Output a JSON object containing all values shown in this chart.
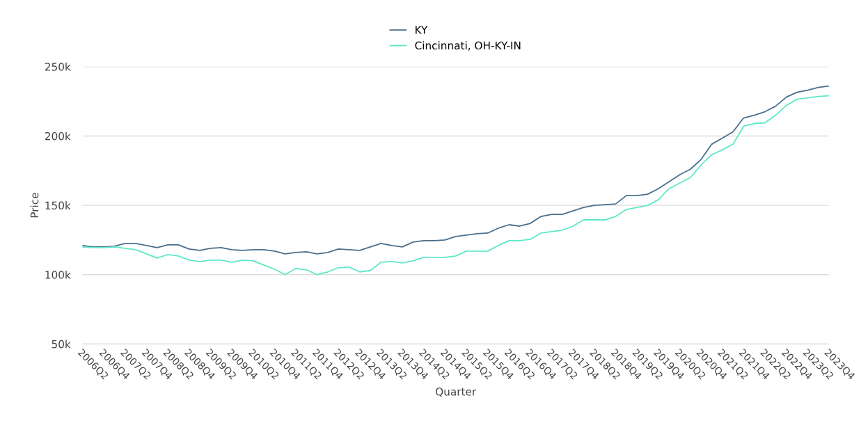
{
  "chart_data": {
    "type": "line",
    "xlabel": "Quarter",
    "ylabel": "Price",
    "categories": [
      "2006Q2",
      null,
      "2006Q4",
      null,
      "2007Q2",
      null,
      "2007Q4",
      null,
      "2008Q2",
      null,
      "2008Q4",
      null,
      "2009Q2",
      null,
      "2009Q4",
      null,
      "2010Q2",
      null,
      "2010Q4",
      null,
      "2011Q2",
      null,
      "2011Q4",
      null,
      "2012Q2",
      null,
      "2012Q4",
      null,
      "2013Q2",
      null,
      "2013Q4",
      null,
      "2014Q2",
      null,
      "2014Q4",
      null,
      "2015Q2",
      null,
      "2015Q4",
      null,
      "2016Q2",
      null,
      "2016Q4",
      null,
      "2017Q2",
      null,
      "2017Q4",
      null,
      "2018Q2",
      null,
      "2018Q4",
      null,
      "2019Q2",
      null,
      "2019Q4",
      null,
      "2020Q2",
      null,
      "2020Q4",
      null,
      "2021Q2",
      null,
      "2021Q4",
      null,
      "2022Q2",
      null,
      "2022Q4",
      null,
      "2023Q2",
      null,
      "2023Q4"
    ],
    "series": [
      {
        "name": "KY",
        "color": "#4a6f8c",
        "values": [
          121000,
          120000,
          120000,
          120500,
          122500,
          122500,
          121000,
          119500,
          121500,
          121500,
          118500,
          117500,
          119000,
          119500,
          118000,
          117500,
          118000,
          118000,
          117000,
          115000,
          116000,
          116500,
          115000,
          116000,
          118500,
          118000,
          117500,
          120000,
          122500,
          121000,
          120000,
          123500,
          124500,
          124500,
          125000,
          127500,
          128500,
          129500,
          130000,
          133500,
          136000,
          135000,
          137000,
          142000,
          143500,
          143500,
          146000,
          148500,
          150000,
          150500,
          151000,
          157000,
          157000,
          158000,
          162000,
          167000,
          172000,
          176000,
          183000,
          194000,
          198500,
          203000,
          213000,
          215000,
          217500,
          221500,
          228000,
          231500,
          233000,
          235000,
          236000
        ]
      },
      {
        "name": "Cincinnati, OH-KY-IN",
        "color": "#5ee8c8",
        "values": [
          120000,
          119500,
          119500,
          120000,
          119000,
          118000,
          115000,
          112000,
          114500,
          113500,
          110500,
          109500,
          110500,
          110500,
          109000,
          110500,
          110000,
          107000,
          104000,
          100000,
          104500,
          103500,
          100000,
          102000,
          105000,
          105500,
          102000,
          103000,
          109000,
          109500,
          108500,
          110000,
          112500,
          112500,
          112500,
          113500,
          117000,
          117000,
          117000,
          121000,
          124500,
          124500,
          125500,
          130000,
          131000,
          132000,
          135000,
          139500,
          139500,
          139500,
          142000,
          147000,
          148500,
          150000,
          154000,
          162000,
          166000,
          170000,
          179000,
          186500,
          190000,
          194000,
          207000,
          209000,
          209500,
          215000,
          222000,
          226500,
          227500,
          228500,
          229000
        ]
      }
    ],
    "ylim": [
      50000,
      250000
    ],
    "yticks": [
      {
        "value": 50000,
        "label": "50k"
      },
      {
        "value": 100000,
        "label": "100k"
      },
      {
        "value": 150000,
        "label": "150k"
      },
      {
        "value": 200000,
        "label": "200k"
      },
      {
        "value": 250000,
        "label": "250k"
      }
    ],
    "grid": "y",
    "legend": "top",
    "marker": "none",
    "line_style": "solid"
  }
}
